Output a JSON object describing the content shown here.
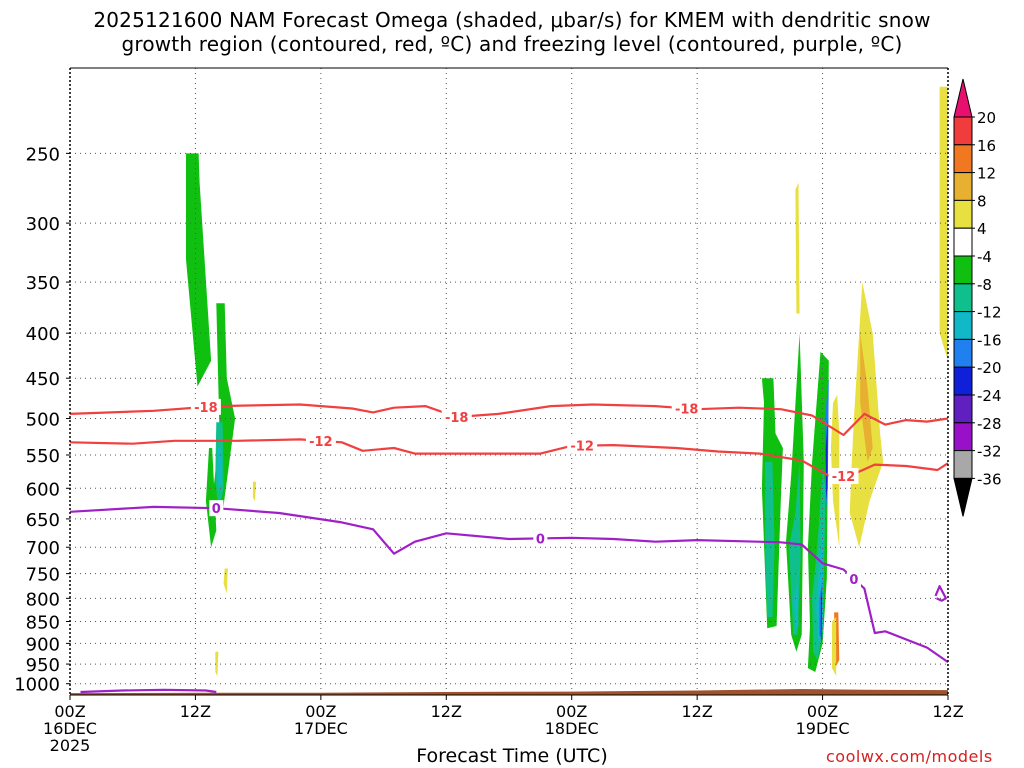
{
  "page": {
    "title_line1": "2025121600 NAM Forecast Omega (shaded, μbar/s) for KMEM with dendritic snow",
    "title_line2": "growth region (contoured, red, ºC) and freezing level (contoured, purple, ºC)",
    "xlabel": "Forecast Time (UTC)",
    "credit": "coolwx.com/models"
  },
  "chart_data": {
    "type": "heatmap",
    "title": "2025121600 NAM Forecast Omega (shaded, μbar/s) for KMEM with dendritic snow growth region (contoured, red, ºC) and freezing level (contoured, purple, ºC)",
    "xlabel": "Forecast Time (UTC)",
    "ylabel": "",
    "x_range_hours": [
      0,
      84
    ],
    "y_scale": "log-pressure",
    "y_range_hPa": [
      1030,
      200
    ],
    "y_ticks": [
      250,
      300,
      350,
      400,
      450,
      500,
      550,
      600,
      650,
      700,
      750,
      800,
      850,
      900,
      950,
      1000
    ],
    "x_ticks": [
      {
        "h": 0,
        "lines": [
          "00Z",
          "16DEC",
          "2025"
        ]
      },
      {
        "h": 12,
        "lines": [
          "12Z"
        ]
      },
      {
        "h": 24,
        "lines": [
          "00Z",
          "17DEC"
        ]
      },
      {
        "h": 36,
        "lines": [
          "12Z"
        ]
      },
      {
        "h": 48,
        "lines": [
          "00Z",
          "18DEC"
        ]
      },
      {
        "h": 60,
        "lines": [
          "12Z"
        ]
      },
      {
        "h": 72,
        "lines": [
          "00Z",
          "19DEC"
        ]
      },
      {
        "h": 84,
        "lines": [
          "12Z"
        ]
      }
    ],
    "grid": true,
    "colorbar": {
      "units": "μbar/s",
      "labels": [
        "20",
        "16",
        "12",
        "8",
        "4",
        "-4",
        "-8",
        "-12",
        "-16",
        "-20",
        "-24",
        "-28",
        "-32",
        "-36"
      ],
      "colors": [
        "#e8106e",
        "#f03c3c",
        "#f07820",
        "#e8b030",
        "#e8e040",
        "#ffffff",
        "#10c010",
        "#10c08c",
        "#10b8c8",
        "#2080f0",
        "#1020d8",
        "#6020c0",
        "#9810c8",
        "#a8a8a8",
        "#000000"
      ]
    },
    "contours": [
      {
        "name": "-18",
        "color": "#f04040",
        "labels_at_h": [
          13,
          37,
          59
        ],
        "points": [
          [
            0,
            494
          ],
          [
            8,
            490
          ],
          [
            14,
            484
          ],
          [
            22,
            482
          ],
          [
            27,
            487
          ],
          [
            29,
            492
          ],
          [
            31,
            486
          ],
          [
            34,
            484
          ],
          [
            37,
            498
          ],
          [
            41,
            494
          ],
          [
            46,
            484
          ],
          [
            50,
            482
          ],
          [
            56,
            484
          ],
          [
            60,
            488
          ],
          [
            64,
            486
          ],
          [
            68,
            488
          ],
          [
            71,
            496
          ],
          [
            74,
            522
          ],
          [
            76,
            494
          ],
          [
            78,
            508
          ],
          [
            80,
            502
          ],
          [
            82,
            504
          ],
          [
            84,
            500
          ]
        ]
      },
      {
        "name": "-12",
        "color": "#f04040",
        "labels_at_h": [
          24,
          49,
          74
        ],
        "points": [
          [
            0,
            532
          ],
          [
            6,
            534
          ],
          [
            10,
            530
          ],
          [
            16,
            530
          ],
          [
            22,
            528
          ],
          [
            26,
            532
          ],
          [
            28,
            544
          ],
          [
            31,
            540
          ],
          [
            33,
            548
          ],
          [
            38,
            548
          ],
          [
            45,
            548
          ],
          [
            48,
            537
          ],
          [
            52,
            536
          ],
          [
            58,
            540
          ],
          [
            62,
            545
          ],
          [
            66,
            548
          ],
          [
            70,
            558
          ],
          [
            73,
            584
          ],
          [
            75,
            578
          ],
          [
            77,
            564
          ],
          [
            80,
            566
          ],
          [
            83,
            572
          ],
          [
            84,
            562
          ]
        ]
      },
      {
        "name": "0",
        "color": "#a020c8",
        "labels_at_h": [
          14,
          45,
          75
        ],
        "points": [
          [
            0,
            638
          ],
          [
            8,
            630
          ],
          [
            14,
            632
          ],
          [
            20,
            640
          ],
          [
            26,
            656
          ],
          [
            29,
            668
          ],
          [
            31,
            712
          ],
          [
            33,
            690
          ],
          [
            36,
            675
          ],
          [
            42,
            685
          ],
          [
            48,
            683
          ],
          [
            52,
            685
          ],
          [
            56,
            690
          ],
          [
            60,
            687
          ],
          [
            64,
            689
          ],
          [
            68,
            691
          ],
          [
            70,
            695
          ],
          [
            72,
            730
          ],
          [
            74,
            742
          ],
          [
            76,
            780
          ],
          [
            77,
            876
          ],
          [
            78,
            872
          ],
          [
            82,
            910
          ],
          [
            84,
            945
          ]
        ]
      },
      {
        "name": "0",
        "color": "#a020c8",
        "labels_at_h": [],
        "points": [
          [
            1,
            1022
          ],
          [
            5,
            1018
          ],
          [
            9,
            1016
          ],
          [
            13,
            1018
          ],
          [
            14,
            1022
          ]
        ]
      },
      {
        "name": "0",
        "color": "#a020c8",
        "labels_at_h": [],
        "points": [
          [
            82.8,
            795
          ],
          [
            83.2,
            775
          ],
          [
            83.8,
            800
          ],
          [
            83.4,
            805
          ],
          [
            82.9,
            800
          ]
        ]
      }
    ],
    "shaded_regions": [
      {
        "color": "#10c010",
        "points": [
          [
            11.1,
            250
          ],
          [
            12.3,
            250
          ],
          [
            12.4,
            270
          ],
          [
            13.5,
            430
          ],
          [
            12.2,
            460
          ],
          [
            11.1,
            330
          ]
        ]
      },
      {
        "color": "#10c010",
        "points": [
          [
            13.3,
            540
          ],
          [
            13.6,
            540
          ],
          [
            14.0,
            670
          ],
          [
            13.5,
            700
          ],
          [
            13.0,
            620
          ]
        ]
      },
      {
        "color": "#10c010",
        "points": [
          [
            14.0,
            370
          ],
          [
            14.8,
            370
          ],
          [
            15.0,
            450
          ],
          [
            15.8,
            500
          ],
          [
            14.6,
            640
          ],
          [
            13.6,
            620
          ],
          [
            14.3,
            520
          ]
        ]
      },
      {
        "color": "#10c08c",
        "points": [
          [
            14.0,
            505
          ],
          [
            14.6,
            505
          ],
          [
            14.7,
            600
          ],
          [
            14.2,
            640
          ],
          [
            13.9,
            580
          ]
        ]
      },
      {
        "color": "#10b8c8",
        "points": [
          [
            14.1,
            540
          ],
          [
            14.4,
            540
          ],
          [
            14.5,
            590
          ],
          [
            14.2,
            600
          ]
        ]
      },
      {
        "color": "#10c010",
        "points": [
          [
            66.2,
            450
          ],
          [
            67.3,
            450
          ],
          [
            67.5,
            520
          ],
          [
            68.2,
            540
          ],
          [
            68.0,
            620
          ],
          [
            67.6,
            860
          ],
          [
            66.7,
            865
          ],
          [
            66.2,
            600
          ],
          [
            66.4,
            480
          ]
        ]
      },
      {
        "color": "#10c08c",
        "points": [
          [
            66.5,
            560
          ],
          [
            67.2,
            560
          ],
          [
            67.4,
            700
          ],
          [
            67.2,
            840
          ],
          [
            66.7,
            840
          ],
          [
            66.5,
            700
          ]
        ]
      },
      {
        "color": "#10c010",
        "points": [
          [
            68.5,
            690
          ],
          [
            69.0,
            580
          ],
          [
            69.8,
            400
          ],
          [
            70.2,
            560
          ],
          [
            70.0,
            880
          ],
          [
            69.5,
            920
          ],
          [
            69.0,
            880
          ]
        ]
      },
      {
        "color": "#10c08c",
        "points": [
          [
            68.8,
            700
          ],
          [
            69.4,
            640
          ],
          [
            69.8,
            560
          ],
          [
            69.9,
            720
          ],
          [
            69.6,
            880
          ],
          [
            69.2,
            880
          ]
        ]
      },
      {
        "color": "#10b8c8",
        "points": [
          [
            69.3,
            800
          ],
          [
            69.6,
            770
          ],
          [
            69.7,
            860
          ],
          [
            69.4,
            870
          ]
        ]
      },
      {
        "color": "#10c010",
        "points": [
          [
            70.6,
            700
          ],
          [
            71.0,
            560
          ],
          [
            71.8,
            420
          ],
          [
            72.6,
            430
          ],
          [
            72.4,
            760
          ],
          [
            72.0,
            900
          ],
          [
            71.3,
            970
          ],
          [
            70.6,
            960
          ],
          [
            70.8,
            860
          ]
        ]
      },
      {
        "color": "#10c08c",
        "points": [
          [
            71.0,
            800
          ],
          [
            71.5,
            700
          ],
          [
            72.0,
            570
          ],
          [
            72.3,
            600
          ],
          [
            72.0,
            880
          ],
          [
            71.5,
            940
          ],
          [
            71.1,
            920
          ]
        ]
      },
      {
        "color": "#10b8c8",
        "points": [
          [
            71.4,
            820
          ],
          [
            71.8,
            700
          ],
          [
            72.1,
            640
          ],
          [
            72.0,
            860
          ],
          [
            71.6,
            900
          ]
        ]
      },
      {
        "color": "#2080f0",
        "points": [
          [
            71.7,
            800
          ],
          [
            72.0,
            760
          ],
          [
            71.9,
            890
          ],
          [
            71.7,
            880
          ]
        ]
      },
      {
        "color": "#1020d8",
        "points": [
          [
            71.85,
            800
          ],
          [
            71.95,
            780
          ],
          [
            71.9,
            900
          ],
          [
            71.82,
            880
          ]
        ]
      },
      {
        "color": "#2080f0",
        "points": [
          [
            72.2,
            500
          ],
          [
            72.6,
            450
          ],
          [
            72.5,
            600
          ],
          [
            72.3,
            640
          ]
        ]
      },
      {
        "color": "#1020d8",
        "points": [
          [
            72.3,
            540
          ],
          [
            72.5,
            500
          ],
          [
            72.45,
            600
          ],
          [
            72.35,
            620
          ]
        ]
      },
      {
        "color": "#e8e040",
        "points": [
          [
            73.0,
            480
          ],
          [
            73.4,
            470
          ],
          [
            73.6,
            520
          ],
          [
            73.6,
            700
          ],
          [
            73.0,
            620
          ],
          [
            72.8,
            540
          ]
        ]
      },
      {
        "color": "#e8e040",
        "points": [
          [
            75.0,
            500
          ],
          [
            75.8,
            350
          ],
          [
            76.8,
            400
          ],
          [
            77.5,
            520
          ],
          [
            77.8,
            560
          ],
          [
            76.5,
            620
          ],
          [
            75.5,
            700
          ],
          [
            74.6,
            640
          ],
          [
            74.8,
            560
          ]
        ]
      },
      {
        "color": "#e8b030",
        "points": [
          [
            75.6,
            400
          ],
          [
            76.3,
            460
          ],
          [
            76.8,
            540
          ],
          [
            76.3,
            560
          ],
          [
            75.6,
            480
          ]
        ]
      },
      {
        "color": "#e8e040",
        "points": [
          [
            83.2,
            210
          ],
          [
            84.0,
            210
          ],
          [
            84.0,
            430
          ],
          [
            83.2,
            400
          ]
        ]
      },
      {
        "color": "#e8e040",
        "points": [
          [
            69.4,
            275
          ],
          [
            69.7,
            270
          ],
          [
            69.8,
            380
          ],
          [
            69.5,
            380
          ]
        ]
      },
      {
        "color": "#e8e040",
        "points": [
          [
            17.5,
            590
          ],
          [
            17.8,
            590
          ],
          [
            17.7,
            620
          ],
          [
            17.5,
            615
          ]
        ]
      },
      {
        "color": "#e8e040",
        "points": [
          [
            14.8,
            740
          ],
          [
            15.1,
            740
          ],
          [
            15.0,
            790
          ],
          [
            14.7,
            770
          ]
        ]
      },
      {
        "color": "#e8e040",
        "points": [
          [
            13.9,
            920
          ],
          [
            14.2,
            920
          ],
          [
            14.1,
            980
          ],
          [
            13.9,
            970
          ]
        ]
      },
      {
        "color": "#f07820",
        "points": [
          [
            73.1,
            830
          ],
          [
            73.5,
            830
          ],
          [
            73.6,
            940
          ],
          [
            73.2,
            960
          ]
        ]
      },
      {
        "color": "#e8e040",
        "points": [
          [
            72.9,
            850
          ],
          [
            73.3,
            840
          ],
          [
            73.3,
            980
          ],
          [
            72.9,
            960
          ]
        ]
      }
    ]
  }
}
